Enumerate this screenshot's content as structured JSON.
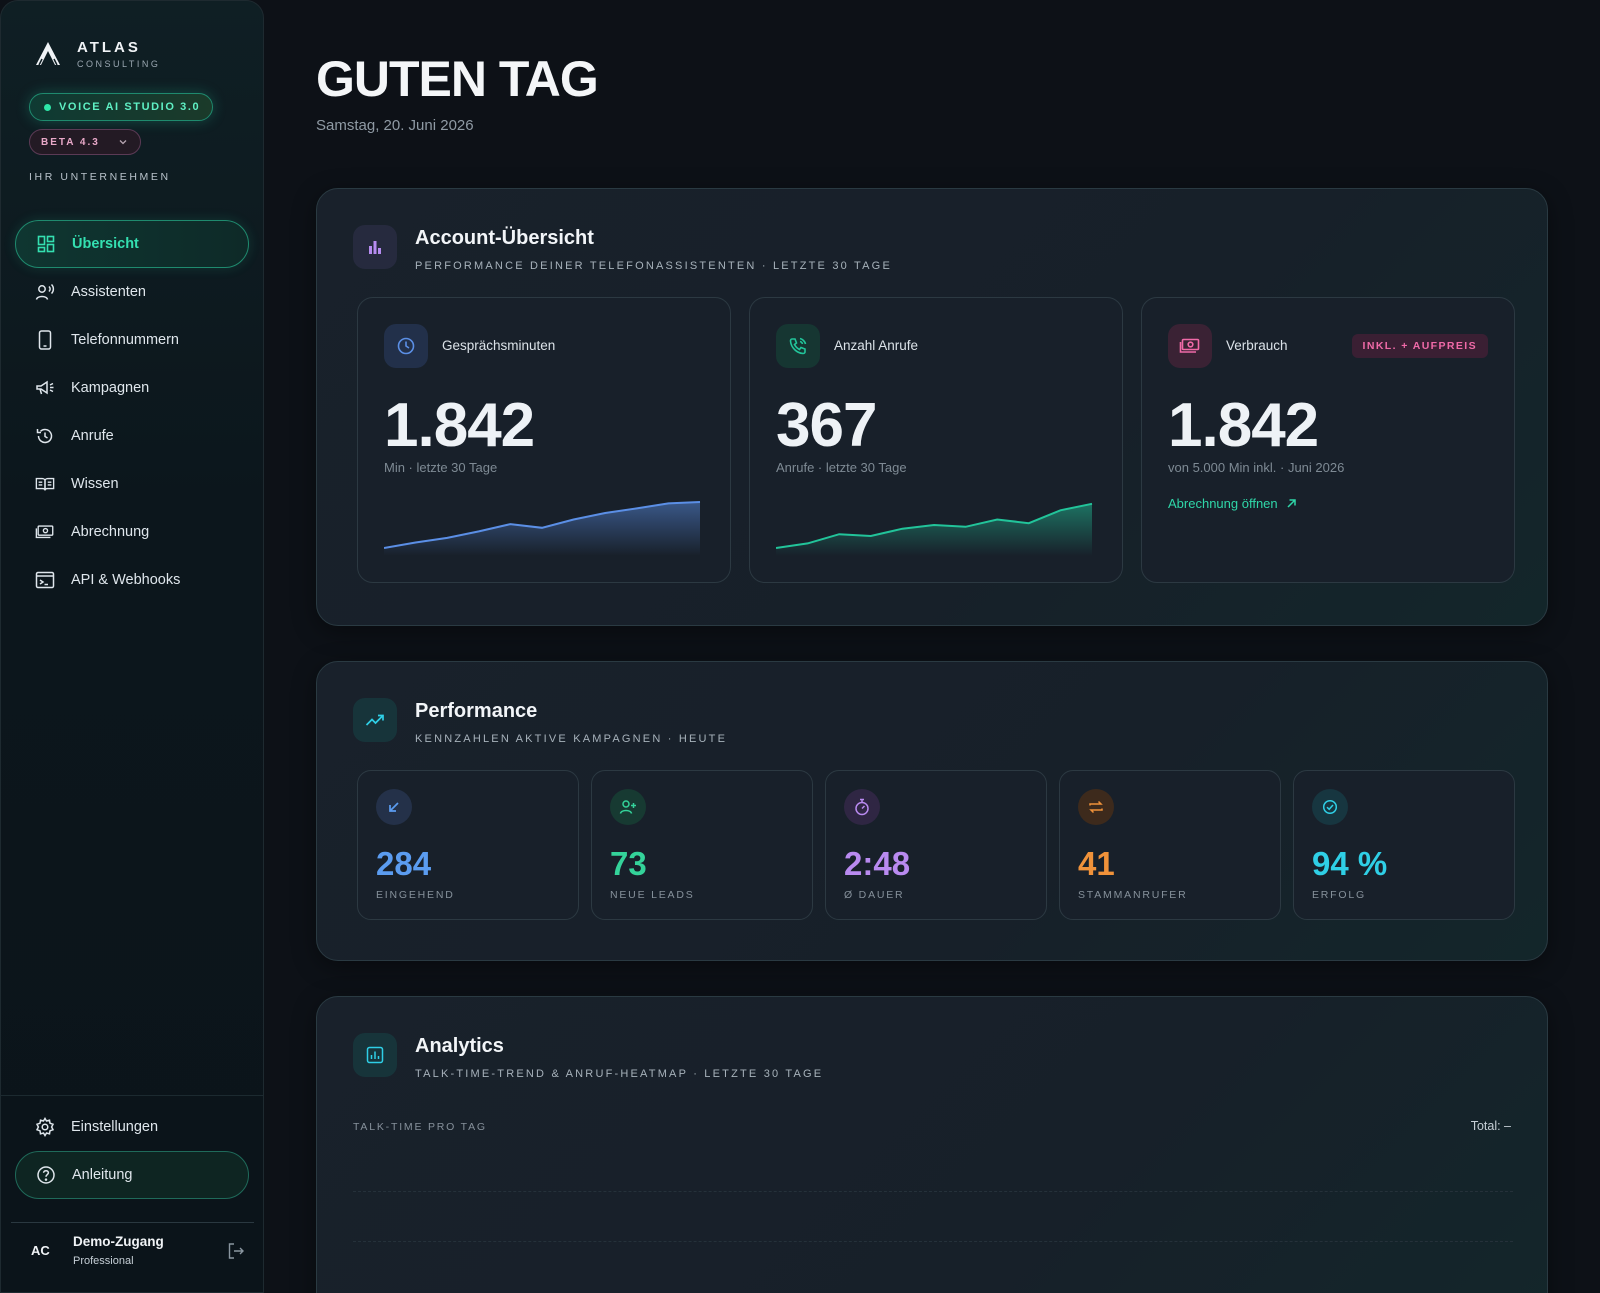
{
  "brand": {
    "name": "ATLAS",
    "sub": "CONSULTING"
  },
  "studio_pill": "VOICE AI STUDIO 3.0",
  "beta_pill": "BETA 4.3",
  "company_label": "IHR UNTERNEHMEN",
  "nav": [
    {
      "label": "Übersicht",
      "icon": "grid-icon",
      "active": true
    },
    {
      "label": "Assistenten",
      "icon": "voice-user-icon"
    },
    {
      "label": "Telefonnummern",
      "icon": "phone-device-icon"
    },
    {
      "label": "Kampagnen",
      "icon": "megaphone-icon"
    },
    {
      "label": "Anrufe",
      "icon": "history-icon"
    },
    {
      "label": "Wissen",
      "icon": "book-icon"
    },
    {
      "label": "Abrechnung",
      "icon": "money-icon"
    },
    {
      "label": "API & Webhooks",
      "icon": "terminal-icon"
    }
  ],
  "nav_bottom": [
    {
      "label": "Einstellungen",
      "icon": "gear-icon"
    },
    {
      "label": "Anleitung",
      "icon": "help-icon"
    }
  ],
  "user": {
    "initials": "AC",
    "name": "Demo-Zugang",
    "plan": "Professional"
  },
  "greeting": "GUTEN TAG",
  "date": "Samstag, 20. Juni 2026",
  "account": {
    "title": "Account-Übersicht",
    "subtitle": "PERFORMANCE DEINER TELEFONASSISTENTEN · LETZTE 30 TAGE",
    "stats": [
      {
        "label": "Gesprächsminuten",
        "value": "1.842",
        "note": "Min · letzte 30 Tage",
        "color": "#5b8fe6",
        "trend": [
          0.0,
          0.12,
          0.22,
          0.36,
          0.52,
          0.44,
          0.62,
          0.76,
          0.86,
          0.97,
          1.0
        ]
      },
      {
        "label": "Anzahl Anrufe",
        "value": "367",
        "note": "Anrufe · letzte 30 Tage",
        "color": "#22c49a",
        "trend": [
          0.0,
          0.1,
          0.3,
          0.26,
          0.42,
          0.5,
          0.46,
          0.62,
          0.54,
          0.82,
          0.96
        ]
      },
      {
        "label": "Verbrauch",
        "value": "1.842",
        "note": "von 5.000 Min inkl. · Juni 2026",
        "badge": "INKL. + AUFPREIS",
        "link": "Abrechnung öffnen"
      }
    ]
  },
  "performance": {
    "title": "Performance",
    "subtitle": "KENNZAHLEN AKTIVE KAMPAGNEN · HEUTE",
    "kpis": [
      {
        "value": "284",
        "label": "EINGEHEND",
        "color": "#5b9cf0",
        "icon": "arrow-down-left-icon"
      },
      {
        "value": "73",
        "label": "NEUE LEADS",
        "color": "#34d39a",
        "icon": "user-plus-icon"
      },
      {
        "value": "2:48",
        "label": "Ø DAUER",
        "color": "#b98af0",
        "icon": "stopwatch-icon"
      },
      {
        "value": "41",
        "label": "STAMMANRUFER",
        "color": "#f0923a",
        "icon": "repeat-icon"
      },
      {
        "value": "94 %",
        "label": "ERFOLG",
        "color": "#2fcfe6",
        "icon": "check-circle-icon"
      }
    ]
  },
  "analytics": {
    "title": "Analytics",
    "subtitle": "TALK-TIME-TREND & ANRUF-HEATMAP · LETZTE 30 TAGE",
    "chart_label": "TALK-TIME PRO TAG",
    "total": "Total: –"
  }
}
